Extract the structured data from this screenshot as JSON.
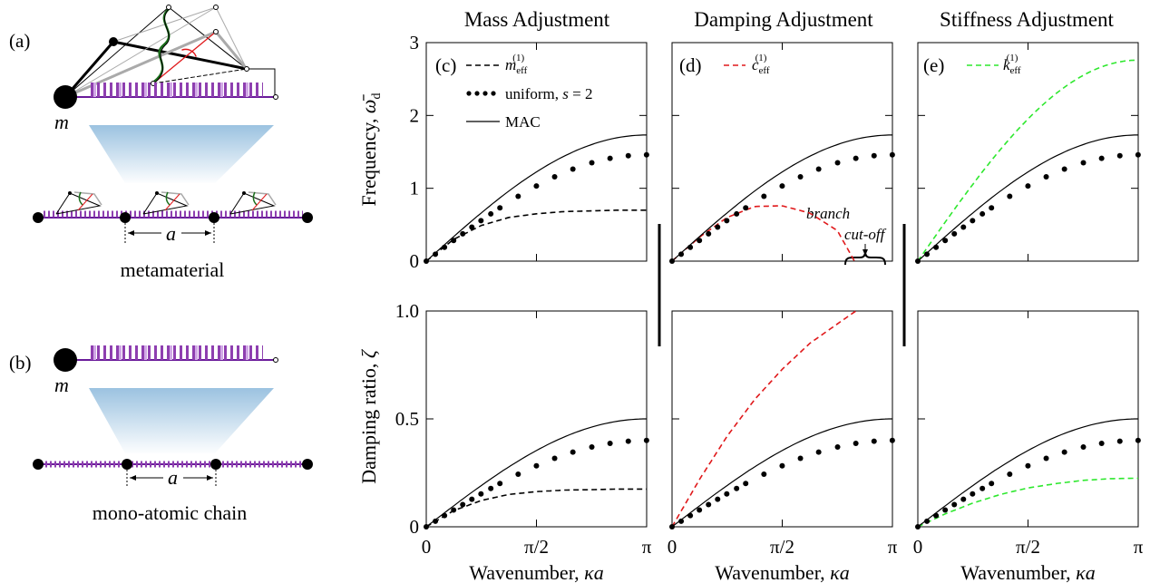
{
  "left_panels": {
    "label_a": "(a)",
    "label_b": "(b)",
    "mass_label": "m",
    "spacing_label": "a",
    "caption_a": "metamaterial",
    "caption_b": "mono-atomic chain"
  },
  "chart_data": [
    {
      "type": "line",
      "panel": "(c)",
      "title": "Mass Adjustment",
      "xlabel": "Wavenumber, κa",
      "ylabel": "Frequency, ω̄d",
      "xlim": [
        0,
        3.1416
      ],
      "ylim": [
        0,
        3
      ],
      "xticks": [
        "0",
        "π/2",
        "π"
      ],
      "yticks": [
        "0",
        "1",
        "2",
        "3"
      ],
      "legend": [
        "m_eff^(1)",
        "uniform, s = 2",
        "MAC"
      ],
      "series": [
        {
          "name": "m_eff^(1)",
          "style": "dashed",
          "color": "#000000",
          "x": [
            0,
            0.3927,
            0.7854,
            1.1781,
            1.5708,
            1.9635,
            2.3562,
            2.7489,
            3.1416
          ],
          "y": [
            0,
            0.3,
            0.49,
            0.6,
            0.65,
            0.68,
            0.69,
            0.7,
            0.7
          ]
        },
        {
          "name": "uniform, s = 2",
          "style": "dotted",
          "color": "#000000",
          "x": [
            0,
            3.1416
          ],
          "y": [
            0,
            1.46
          ]
        },
        {
          "name": "MAC",
          "style": "solid",
          "color": "#000000",
          "x": [
            0,
            3.1416
          ],
          "y": [
            0,
            1.732
          ]
        }
      ]
    },
    {
      "type": "line",
      "panel": "(d)",
      "title": "Damping Adjustment",
      "xlabel": "Wavenumber, κa",
      "xlim": [
        0,
        3.1416
      ],
      "ylim": [
        0,
        3
      ],
      "xticks": [
        "0",
        "π/2",
        "π"
      ],
      "legend": [
        "c_eff^(1)"
      ],
      "annotation": [
        "branch",
        "cut-off"
      ],
      "series": [
        {
          "name": "c_eff^(1)",
          "style": "dashed",
          "color": "#e0191b",
          "x": [
            0,
            0.3927,
            0.7854,
            1.1781,
            1.5708,
            1.9635,
            2.3562,
            2.6
          ],
          "y": [
            0,
            0.33,
            0.6,
            0.75,
            0.76,
            0.66,
            0.42,
            0
          ]
        },
        {
          "name": "uniform, s = 2",
          "style": "dotted",
          "color": "#000000",
          "x": [
            0,
            3.1416
          ],
          "y": [
            0,
            1.46
          ]
        },
        {
          "name": "MAC",
          "style": "solid",
          "color": "#000000",
          "x": [
            0,
            3.1416
          ],
          "y": [
            0,
            1.732
          ]
        }
      ]
    },
    {
      "type": "line",
      "panel": "(e)",
      "title": "Stiffness Adjustment",
      "xlabel": "Wavenumber, κa",
      "xlim": [
        0,
        3.1416
      ],
      "ylim": [
        0,
        3
      ],
      "xticks": [
        "0",
        "π/2",
        "π"
      ],
      "legend": [
        "k_eff^(1)"
      ],
      "series": [
        {
          "name": "k_eff^(1)",
          "style": "dashed",
          "color": "#2ee82e",
          "x": [
            0,
            3.1416
          ],
          "y": [
            0,
            2.76
          ]
        },
        {
          "name": "uniform, s = 2",
          "style": "dotted",
          "color": "#000000",
          "x": [
            0,
            3.1416
          ],
          "y": [
            0,
            1.46
          ]
        },
        {
          "name": "MAC",
          "style": "solid",
          "color": "#000000",
          "x": [
            0,
            3.1416
          ],
          "y": [
            0,
            1.732
          ]
        }
      ]
    },
    {
      "type": "line",
      "title": "",
      "xlabel": "Wavenumber, κa",
      "ylabel": "Damping ratio, ζ",
      "xlim": [
        0,
        3.1416
      ],
      "ylim": [
        0,
        1
      ],
      "xticks": [
        "0",
        "π/2",
        "π"
      ],
      "yticks": [
        "0",
        "0.5",
        "1.0"
      ],
      "series": [
        {
          "name": "m_eff^(1)",
          "style": "dashed",
          "color": "#000000",
          "x": [
            0,
            0.3927,
            0.7854,
            1.1781,
            1.5708,
            1.9635,
            2.3562,
            2.7489,
            3.1416
          ],
          "y": [
            0,
            0.075,
            0.122,
            0.15,
            0.163,
            0.17,
            0.172,
            0.175,
            0.175
          ]
        },
        {
          "name": "uniform, s = 2",
          "style": "dotted",
          "color": "#000000",
          "x": [
            0,
            3.1416
          ],
          "y": [
            0,
            0.4
          ]
        },
        {
          "name": "MAC",
          "style": "solid",
          "color": "#000000",
          "x": [
            0,
            3.1416
          ],
          "y": [
            0,
            0.5
          ]
        }
      ]
    },
    {
      "type": "line",
      "title": "",
      "xlabel": "Wavenumber, κa",
      "xlim": [
        0,
        3.1416
      ],
      "ylim": [
        0,
        1
      ],
      "xticks": [
        "0",
        "π/2",
        "π"
      ],
      "series": [
        {
          "name": "c_eff^(1)",
          "style": "dashed",
          "color": "#e0191b",
          "x": [
            0,
            0.3927,
            0.7854,
            1.1781,
            1.5708,
            1.9635,
            2.3562,
            2.62
          ],
          "y": [
            0,
            0.22,
            0.42,
            0.59,
            0.73,
            0.85,
            0.94,
            1.0
          ]
        },
        {
          "name": "uniform, s = 2",
          "style": "dotted",
          "color": "#000000",
          "x": [
            0,
            3.1416
          ],
          "y": [
            0,
            0.4
          ]
        },
        {
          "name": "MAC",
          "style": "solid",
          "color": "#000000",
          "x": [
            0,
            3.1416
          ],
          "y": [
            0,
            0.5
          ]
        }
      ]
    },
    {
      "type": "line",
      "title": "",
      "xlabel": "Wavenumber, κa",
      "xlim": [
        0,
        3.1416
      ],
      "ylim": [
        0,
        1
      ],
      "xticks": [
        "0",
        "π/2",
        "π"
      ],
      "series": [
        {
          "name": "k_eff^(1)",
          "style": "dashed",
          "color": "#2ee82e",
          "x": [
            0,
            0.3927,
            0.7854,
            1.1781,
            1.5708,
            1.9635,
            2.3562,
            2.7489,
            3.1416
          ],
          "y": [
            0,
            0.06,
            0.11,
            0.15,
            0.18,
            0.2,
            0.215,
            0.223,
            0.225
          ]
        },
        {
          "name": "uniform, s = 2",
          "style": "dotted",
          "color": "#000000",
          "x": [
            0,
            3.1416
          ],
          "y": [
            0,
            0.4
          ]
        },
        {
          "name": "MAC",
          "style": "solid",
          "color": "#000000",
          "x": [
            0,
            3.1416
          ],
          "y": [
            0,
            0.5
          ]
        }
      ]
    }
  ]
}
